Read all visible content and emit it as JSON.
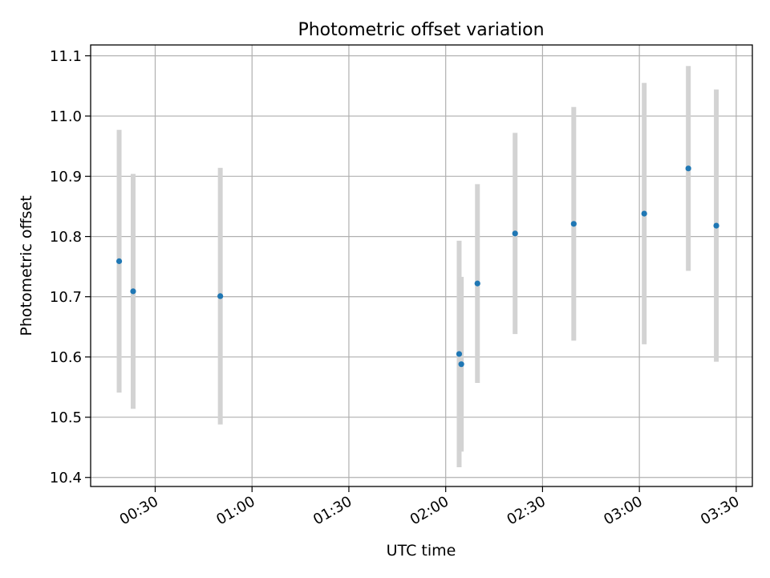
{
  "chart_data": {
    "type": "scatter",
    "title": "Photometric offset variation",
    "xlabel": "UTC time",
    "ylabel": "Photometric offset",
    "x_is_time": true,
    "xlim": [
      "00:10",
      "03:35"
    ],
    "ylim": [
      10.385,
      11.118
    ],
    "x_ticks": [
      "00:30",
      "01:00",
      "01:30",
      "02:00",
      "02:30",
      "03:00",
      "03:30"
    ],
    "y_ticks": [
      10.4,
      10.5,
      10.6,
      10.7,
      10.8,
      10.9,
      11.0,
      11.1
    ],
    "y_tick_labels": [
      "10.4",
      "10.5",
      "10.6",
      "10.7",
      "10.8",
      "10.9",
      "11.0",
      "11.1"
    ],
    "grid": true,
    "point_color": "#1f77b4",
    "errorbar_color": "#d3d3d3",
    "points": [
      {
        "time": "00:18:50",
        "y": 10.759,
        "ylow": 10.541,
        "yhigh": 10.977
      },
      {
        "time": "00:23:10",
        "y": 10.709,
        "ylow": 10.514,
        "yhigh": 10.904
      },
      {
        "time": "00:50:10",
        "y": 10.701,
        "ylow": 10.488,
        "yhigh": 10.914
      },
      {
        "time": "02:04:10",
        "y": 10.605,
        "ylow": 10.417,
        "yhigh": 10.793
      },
      {
        "time": "02:04:50",
        "y": 10.588,
        "ylow": 10.443,
        "yhigh": 10.733
      },
      {
        "time": "02:09:50",
        "y": 10.722,
        "ylow": 10.557,
        "yhigh": 10.887
      },
      {
        "time": "02:21:30",
        "y": 10.805,
        "ylow": 10.638,
        "yhigh": 10.972
      },
      {
        "time": "02:39:40",
        "y": 10.821,
        "ylow": 10.627,
        "yhigh": 11.015
      },
      {
        "time": "03:01:30",
        "y": 10.838,
        "ylow": 10.621,
        "yhigh": 11.055
      },
      {
        "time": "03:15:10",
        "y": 10.913,
        "ylow": 10.743,
        "yhigh": 11.083
      },
      {
        "time": "03:23:50",
        "y": 10.818,
        "ylow": 10.592,
        "yhigh": 11.044
      }
    ]
  }
}
